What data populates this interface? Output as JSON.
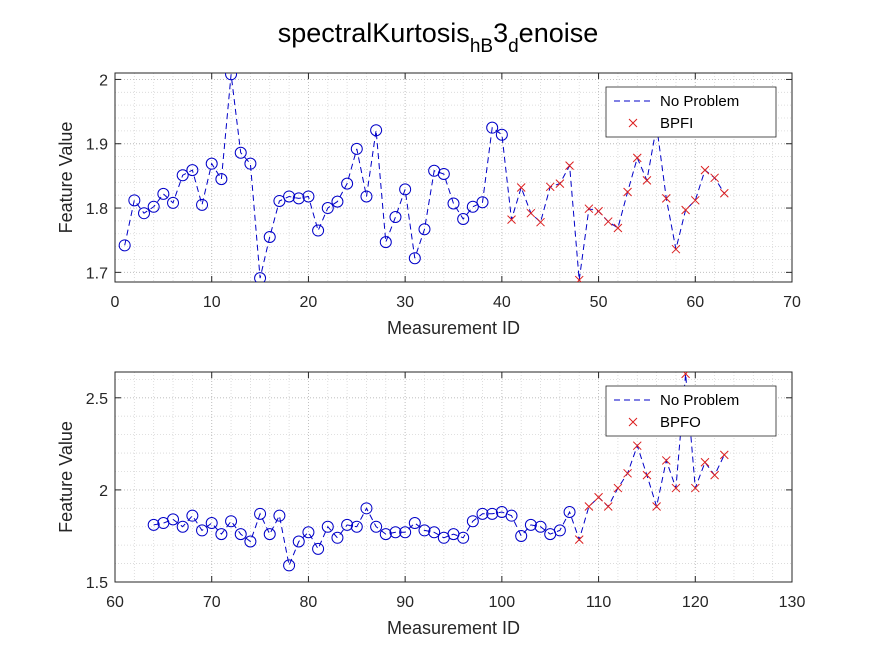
{
  "title": {
    "base": "spectralKurtosis",
    "sub1": "hB",
    "mid": "3",
    "sub2": "d",
    "tail": "enoise"
  },
  "chart_data": [
    {
      "type": "line",
      "xlabel": "Measurement ID",
      "ylabel": "Feature Value",
      "xlim": [
        0,
        70
      ],
      "ylim": [
        1.685,
        2.01
      ],
      "xticks": [
        0,
        10,
        20,
        30,
        40,
        50,
        60,
        70
      ],
      "yticks": [
        1.7,
        1.8,
        1.9,
        2.0
      ],
      "ytick_labels": [
        "1.7",
        "1.8",
        "1.9",
        "2"
      ],
      "grid": "on (major and minor, dotted)",
      "legend_location": "top-right",
      "line_style": {
        "color": "#0000c8",
        "dash": "dashed"
      },
      "series": [
        {
          "name": "No Problem",
          "marker": "circle",
          "color": "#0000c8",
          "x": [
            1,
            2,
            3,
            4,
            5,
            6,
            7,
            8,
            9,
            10,
            11,
            12,
            13,
            14,
            15,
            16,
            17,
            18,
            19,
            20,
            21,
            22,
            23,
            24,
            25,
            26,
            27,
            28,
            29,
            30,
            31,
            32,
            33,
            34,
            35,
            36,
            37,
            38,
            39,
            40
          ],
          "y": [
            1.742,
            1.812,
            1.792,
            1.802,
            1.822,
            1.808,
            1.851,
            1.859,
            1.805,
            1.869,
            1.845,
            2.008,
            1.886,
            1.869,
            1.691,
            1.755,
            1.811,
            1.818,
            1.815,
            1.818,
            1.765,
            1.8,
            1.81,
            1.838,
            1.892,
            1.818,
            1.921,
            1.747,
            1.786,
            1.829,
            1.722,
            1.767,
            1.858,
            1.853,
            1.807,
            1.783,
            1.802,
            1.809,
            1.925,
            1.914
          ]
        },
        {
          "name": "BPFI",
          "marker": "x",
          "color": "#dc2020",
          "x": [
            41,
            42,
            43,
            44,
            45,
            46,
            47,
            48,
            49,
            50,
            51,
            52,
            53,
            54,
            55,
            56,
            57,
            58,
            59,
            60,
            61,
            62,
            63
          ],
          "y": [
            1.782,
            1.832,
            1.792,
            1.778,
            1.833,
            1.838,
            1.866,
            1.688,
            1.799,
            1.795,
            1.779,
            1.769,
            1.825,
            1.878,
            1.843,
            1.928,
            1.815,
            1.736,
            1.797,
            1.812,
            1.859,
            1.847,
            1.823
          ]
        }
      ]
    },
    {
      "type": "line",
      "xlabel": "Measurement ID",
      "ylabel": "Feature Value",
      "xlim": [
        60,
        130
      ],
      "ylim": [
        1.5,
        2.64
      ],
      "xticks": [
        60,
        70,
        80,
        90,
        100,
        110,
        120,
        130
      ],
      "yticks": [
        1.5,
        2.0,
        2.5
      ],
      "ytick_labels": [
        "1.5",
        "2",
        "2.5"
      ],
      "grid": "on (major and minor, dotted)",
      "legend_location": "top-right",
      "line_style": {
        "color": "#0000c8",
        "dash": "dashed"
      },
      "series": [
        {
          "name": "No Problem",
          "marker": "circle",
          "color": "#0000c8",
          "x": [
            64,
            65,
            66,
            67,
            68,
            69,
            70,
            71,
            72,
            73,
            74,
            75,
            76,
            77,
            78,
            79,
            80,
            81,
            82,
            83,
            84,
            85,
            86,
            87,
            88,
            89,
            90,
            91,
            92,
            93,
            94,
            95,
            96,
            97,
            98,
            99,
            100,
            101,
            102,
            103,
            104,
            105,
            106,
            107
          ],
          "y": [
            1.81,
            1.82,
            1.84,
            1.8,
            1.86,
            1.78,
            1.82,
            1.76,
            1.83,
            1.76,
            1.72,
            1.87,
            1.76,
            1.86,
            1.59,
            1.72,
            1.77,
            1.68,
            1.8,
            1.74,
            1.81,
            1.8,
            1.9,
            1.8,
            1.76,
            1.77,
            1.77,
            1.82,
            1.78,
            1.77,
            1.74,
            1.76,
            1.74,
            1.83,
            1.87,
            1.87,
            1.88,
            1.86,
            1.75,
            1.81,
            1.8,
            1.76,
            1.78,
            1.88
          ]
        },
        {
          "name": "BPFO",
          "marker": "x",
          "color": "#dc2020",
          "x": [
            108,
            109,
            110,
            111,
            112,
            113,
            114,
            115,
            116,
            117,
            118,
            119,
            120,
            121,
            122,
            123
          ],
          "y": [
            1.73,
            1.91,
            1.96,
            1.91,
            2.01,
            2.09,
            2.24,
            2.08,
            1.91,
            2.16,
            2.01,
            2.63,
            2.01,
            2.15,
            2.08,
            2.19
          ]
        }
      ]
    }
  ]
}
